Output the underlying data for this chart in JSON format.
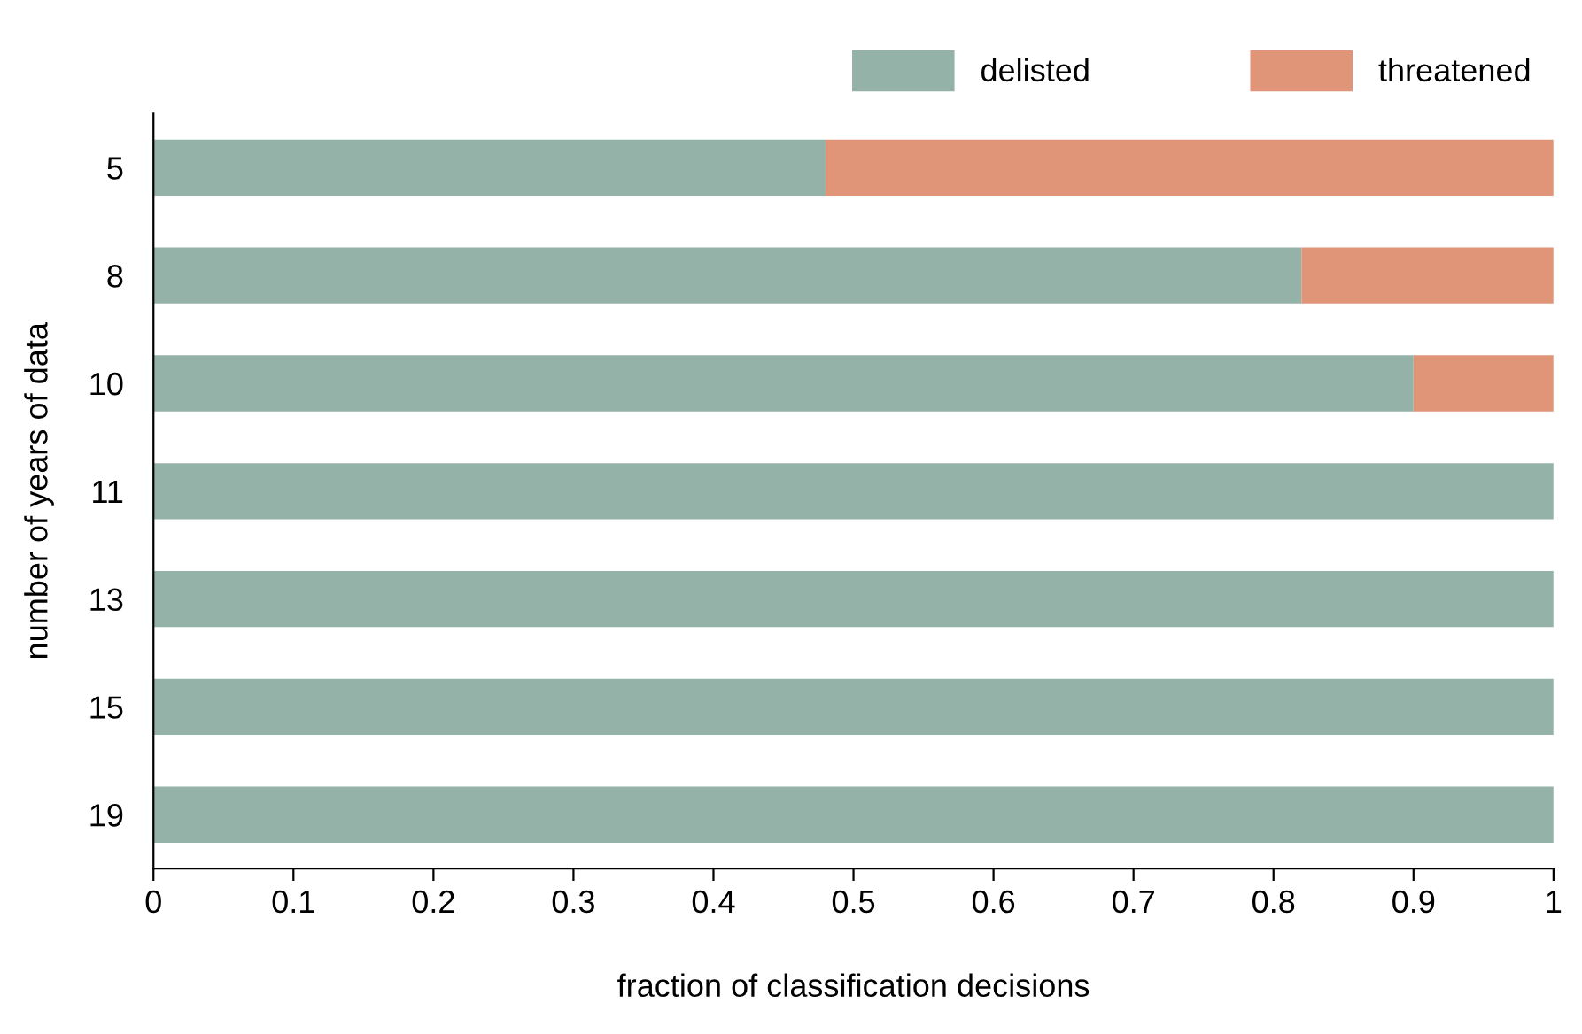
{
  "chart_data": {
    "type": "bar",
    "orientation": "horizontal",
    "stacked": true,
    "xlabel": "fraction of classification decisions",
    "ylabel": "number of years of data",
    "categories": [
      "5",
      "8",
      "10",
      "11",
      "13",
      "15",
      "19"
    ],
    "series": [
      {
        "name": "delisted",
        "color": "#95b2a8",
        "values": [
          0.48,
          0.82,
          0.9,
          1,
          1,
          1,
          1
        ]
      },
      {
        "name": "threatened",
        "color": "#e09578",
        "values": [
          0.52,
          0.18,
          0.1,
          0,
          0,
          0,
          0
        ]
      }
    ],
    "xlim": [
      0,
      1
    ],
    "xticks": [
      0,
      0.1,
      0.2,
      0.3,
      0.4,
      0.5,
      0.6,
      0.7,
      0.8,
      0.9,
      1
    ],
    "legend": "top right",
    "grid": false
  }
}
